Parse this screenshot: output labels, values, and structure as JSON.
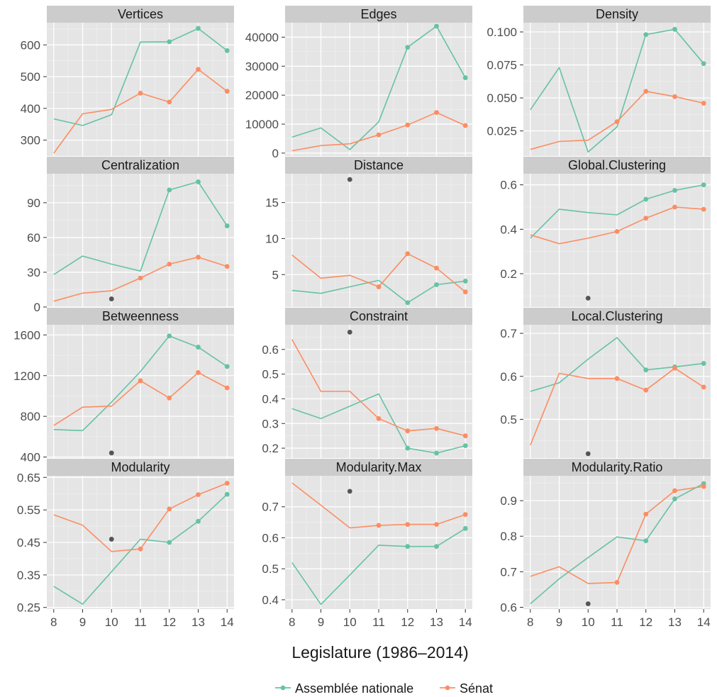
{
  "chart_data": {
    "type": "line",
    "xlabel": "Legislature (1986–2014)",
    "x": [
      8,
      9,
      10,
      11,
      12,
      13,
      14
    ],
    "x_ticks": [
      "8",
      "9",
      "10",
      "11",
      "12",
      "13",
      "14"
    ],
    "grid": true,
    "legend": {
      "position": "bottom",
      "entries": [
        {
          "name": "Assemblée nationale",
          "color": "#66c2a5"
        },
        {
          "name": "Sénat",
          "color": "#fc8d62"
        }
      ]
    },
    "colors": {
      "assemblee": "#66c2a5",
      "senat": "#fc8d62",
      "dot": "#555555",
      "panel_bg": "#e5e5e5",
      "strip_bg": "#cccccc",
      "grid": "#ffffff"
    },
    "panels": [
      {
        "title": "Vertices",
        "ylim": [
          250,
          670
        ],
        "yticks": [
          300,
          400,
          500,
          600
        ],
        "ytick_labels": [
          "300",
          "400",
          "500",
          "600"
        ],
        "series": [
          {
            "name": "Assemblée nationale",
            "values": [
              367,
              346,
              380,
              609,
              610,
              652,
              582
            ],
            "markers_from": 12
          },
          {
            "name": "Sénat",
            "values": [
              259,
              383,
              397,
              448,
              420,
              523,
              454
            ],
            "markers_from": 11
          }
        ],
        "points": []
      },
      {
        "title": "Edges",
        "ylim": [
          -1000,
          45000
        ],
        "yticks": [
          0,
          10000,
          20000,
          30000,
          40000
        ],
        "ytick_labels": [
          "0",
          "10000",
          "20000",
          "30000",
          "40000"
        ],
        "series": [
          {
            "name": "Assemblée nationale",
            "values": [
              5500,
              8700,
              1200,
              10800,
              36500,
              43800,
              26000
            ],
            "markers_from": 12
          },
          {
            "name": "Sénat",
            "values": [
              800,
              2600,
              3200,
              6300,
              9700,
              14000,
              9500
            ],
            "markers_from": 11
          }
        ],
        "points": []
      },
      {
        "title": "Density",
        "ylim": [
          0.006,
          0.107
        ],
        "yticks": [
          0.025,
          0.05,
          0.075,
          0.1
        ],
        "ytick_labels": [
          "0.025",
          "0.050",
          "0.075",
          "0.100"
        ],
        "series": [
          {
            "name": "Assemblée nationale",
            "values": [
              0.041,
              0.073,
              0.009,
              0.028,
              0.098,
              0.102,
              0.076
            ],
            "markers_from": 12
          },
          {
            "name": "Sénat",
            "values": [
              0.011,
              0.017,
              0.018,
              0.032,
              0.055,
              0.051,
              0.046
            ],
            "markers_from": 11
          }
        ],
        "points": []
      },
      {
        "title": "Centralization",
        "ylim": [
          0,
          115
        ],
        "yticks": [
          0,
          30,
          60,
          90
        ],
        "ytick_labels": [
          "0",
          "30",
          "60",
          "90"
        ],
        "series": [
          {
            "name": "Assemblée nationale",
            "values": [
              28,
              44,
              37,
              31,
              101,
              108,
              70
            ],
            "markers_from": 12
          },
          {
            "name": "Sénat",
            "values": [
              5,
              12,
              14,
              25,
              37,
              43,
              35
            ],
            "markers_from": 11
          }
        ],
        "points": [
          {
            "x": 10,
            "y": 7
          }
        ]
      },
      {
        "title": "Distance",
        "ylim": [
          0.5,
          19
        ],
        "yticks": [
          5,
          10,
          15
        ],
        "ytick_labels": [
          "5",
          "10",
          "15"
        ],
        "series": [
          {
            "name": "Assemblée nationale",
            "values": [
              2.8,
              2.4,
              3.3,
              4.2,
              1.1,
              3.6,
              4.1
            ],
            "markers_from": 12
          },
          {
            "name": "Sénat",
            "values": [
              7.7,
              4.5,
              4.9,
              3.3,
              7.9,
              5.9,
              2.6
            ],
            "markers_from": 11
          }
        ],
        "points": [
          {
            "x": 10,
            "y": 18.2
          }
        ]
      },
      {
        "title": "Global.Clustering",
        "ylim": [
          0.05,
          0.65
        ],
        "yticks": [
          0.2,
          0.4,
          0.6
        ],
        "ytick_labels": [
          "0.2",
          "0.4",
          "0.6"
        ],
        "series": [
          {
            "name": "Assemblée nationale",
            "values": [
              0.36,
              0.49,
              0.475,
              0.465,
              0.535,
              0.575,
              0.6
            ],
            "markers_from": 12
          },
          {
            "name": "Sénat",
            "values": [
              0.375,
              0.335,
              0.36,
              0.39,
              0.45,
              0.5,
              0.49
            ],
            "markers_from": 11
          }
        ],
        "points": [
          {
            "x": 10,
            "y": 0.09
          }
        ]
      },
      {
        "title": "Betweenness",
        "ylim": [
          390,
          1700
        ],
        "yticks": [
          400,
          800,
          1200,
          1600
        ],
        "ytick_labels": [
          "400",
          "800",
          "1200",
          "1600"
        ],
        "series": [
          {
            "name": "Assemblée nationale",
            "values": [
              670,
              660,
              940,
              1240,
              1590,
              1480,
              1290
            ],
            "markers_from": 12
          },
          {
            "name": "Sénat",
            "values": [
              710,
              890,
              900,
              1150,
              980,
              1230,
              1080
            ],
            "markers_from": 11
          }
        ],
        "points": [
          {
            "x": 10,
            "y": 440
          }
        ]
      },
      {
        "title": "Constraint",
        "ylim": [
          0.16,
          0.7
        ],
        "yticks": [
          0.2,
          0.3,
          0.4,
          0.5,
          0.6
        ],
        "ytick_labels": [
          "0.2",
          "0.3",
          "0.4",
          "0.5",
          "0.6"
        ],
        "series": [
          {
            "name": "Assemblée nationale",
            "values": [
              0.36,
              0.32,
              0.37,
              0.42,
              0.2,
              0.18,
              0.21
            ],
            "markers_from": 12
          },
          {
            "name": "Sénat",
            "values": [
              0.64,
              0.43,
              0.43,
              0.32,
              0.27,
              0.28,
              0.25
            ],
            "markers_from": 11
          }
        ],
        "points": [
          {
            "x": 10,
            "y": 0.67
          }
        ]
      },
      {
        "title": "Local.Clustering",
        "ylim": [
          0.41,
          0.72
        ],
        "yticks": [
          0.5,
          0.6,
          0.7
        ],
        "ytick_labels": [
          "0.5",
          "0.6",
          "0.7"
        ],
        "series": [
          {
            "name": "Assemblée nationale",
            "values": [
              0.565,
              0.585,
              0.64,
              0.69,
              0.615,
              0.622,
              0.63
            ],
            "markers_from": 12
          },
          {
            "name": "Sénat",
            "values": [
              0.44,
              0.607,
              0.595,
              0.595,
              0.568,
              0.619,
              0.575
            ],
            "markers_from": 11
          }
        ],
        "points": [
          {
            "x": 10,
            "y": 0.42
          }
        ]
      },
      {
        "title": "Modularity",
        "ylim": [
          0.245,
          0.655
        ],
        "yticks": [
          0.25,
          0.35,
          0.45,
          0.55,
          0.65
        ],
        "ytick_labels": [
          "0.25",
          "0.35",
          "0.45",
          "0.55",
          "0.65"
        ],
        "series": [
          {
            "name": "Assemblée nationale",
            "values": [
              0.315,
              0.26,
              0.36,
              0.46,
              0.45,
              0.515,
              0.598
            ],
            "markers_from": 12
          },
          {
            "name": "Sénat",
            "values": [
              0.535,
              0.503,
              0.422,
              0.43,
              0.553,
              0.597,
              0.632
            ],
            "markers_from": 11
          }
        ],
        "points": [
          {
            "x": 10,
            "y": 0.46
          }
        ]
      },
      {
        "title": "Modularity.Max",
        "ylim": [
          0.37,
          0.8
        ],
        "yticks": [
          0.4,
          0.5,
          0.6,
          0.7
        ],
        "ytick_labels": [
          "0.4",
          "0.5",
          "0.6",
          "0.7"
        ],
        "series": [
          {
            "name": "Assemblée nationale",
            "values": [
              0.52,
              0.385,
              0.48,
              0.576,
              0.572,
              0.572,
              0.63
            ],
            "markers_from": 12
          },
          {
            "name": "Sénat",
            "values": [
              0.777,
              0.705,
              0.632,
              0.64,
              0.643,
              0.643,
              0.675
            ],
            "markers_from": 11
          }
        ],
        "points": [
          {
            "x": 10,
            "y": 0.75
          }
        ]
      },
      {
        "title": "Modularity.Ratio",
        "ylim": [
          0.595,
          0.97
        ],
        "yticks": [
          0.6,
          0.7,
          0.8,
          0.9
        ],
        "ytick_labels": [
          "0.6",
          "0.7",
          "0.8",
          "0.9"
        ],
        "series": [
          {
            "name": "Assemblée nationale",
            "values": [
              0.61,
              0.68,
              0.74,
              0.798,
              0.787,
              0.905,
              0.948
            ],
            "markers_from": 12
          },
          {
            "name": "Sénat",
            "values": [
              0.687,
              0.714,
              0.667,
              0.67,
              0.862,
              0.928,
              0.94
            ],
            "markers_from": 11
          }
        ],
        "points": [
          {
            "x": 10,
            "y": 0.61
          }
        ]
      }
    ]
  }
}
